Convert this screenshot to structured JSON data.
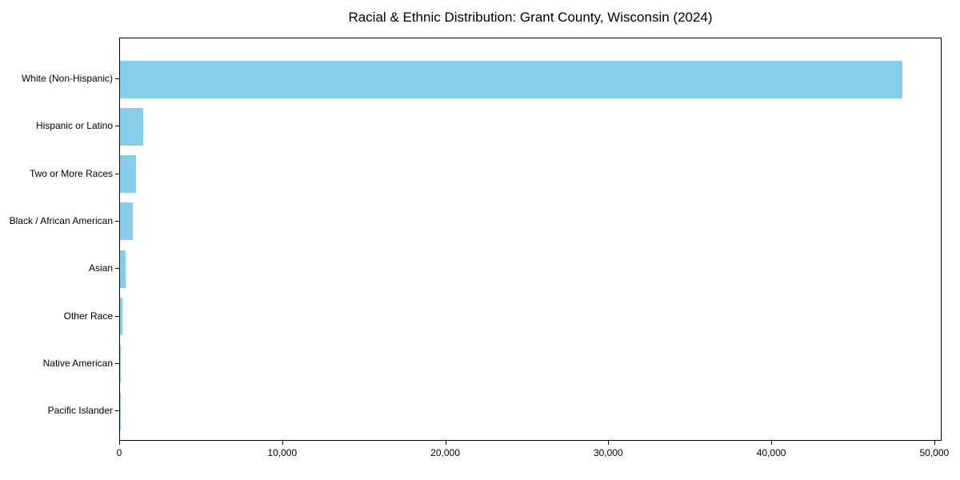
{
  "title": "Racial & Ethnic Distribution: Grant County, Wisconsin (2024)",
  "chart_data": {
    "type": "bar",
    "orientation": "horizontal",
    "title": "Racial & Ethnic Distribution: Grant County, Wisconsin (2024)",
    "categories": [
      "White (Non-Hispanic)",
      "Hispanic or Latino",
      "Two or More Races",
      "Black / African American",
      "Asian",
      "Other Race",
      "Native American",
      "Pacific Islander"
    ],
    "values": [
      48000,
      1400,
      1000,
      800,
      350,
      150,
      50,
      10
    ],
    "xlabel": "",
    "ylabel": "",
    "xlim": [
      0,
      50450
    ],
    "xticks": [
      0,
      10000,
      20000,
      30000,
      40000,
      50000
    ],
    "xtick_labels": [
      "0",
      "10,000",
      "20,000",
      "30,000",
      "40,000",
      "50,000"
    ],
    "bar_color": "#87CEEB",
    "text_color": "#000000",
    "grid": false,
    "legend": null
  }
}
